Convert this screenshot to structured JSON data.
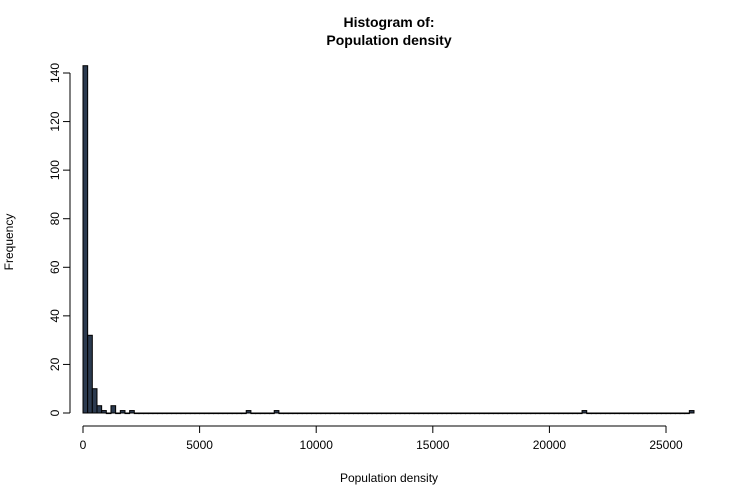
{
  "chart_data": {
    "type": "bar",
    "title": "Histogram of:\nPopulation density",
    "title_lines": [
      "Histogram of:",
      "Population density"
    ],
    "xlabel": "Population density",
    "ylabel": "Frequency",
    "xlim": [
      0,
      26200
    ],
    "ylim": [
      0,
      140
    ],
    "bin_width": 200,
    "x_ticks": [
      0,
      5000,
      10000,
      15000,
      20000,
      25000
    ],
    "y_ticks": [
      0,
      20,
      40,
      60,
      80,
      100,
      120,
      140
    ],
    "bar_color": "#2b3a4f",
    "grid": false,
    "bins": [
      {
        "x0": 0,
        "x1": 200,
        "count": 143
      },
      {
        "x0": 200,
        "x1": 400,
        "count": 32
      },
      {
        "x0": 400,
        "x1": 600,
        "count": 10
      },
      {
        "x0": 600,
        "x1": 800,
        "count": 3
      },
      {
        "x0": 800,
        "x1": 1000,
        "count": 1
      },
      {
        "x0": 1200,
        "x1": 1400,
        "count": 3
      },
      {
        "x0": 1600,
        "x1": 1800,
        "count": 1
      },
      {
        "x0": 2000,
        "x1": 2200,
        "count": 1
      },
      {
        "x0": 7000,
        "x1": 7200,
        "count": 1
      },
      {
        "x0": 8200,
        "x1": 8400,
        "count": 1
      },
      {
        "x0": 21400,
        "x1": 21600,
        "count": 1
      },
      {
        "x0": 26000,
        "x1": 26200,
        "count": 1
      }
    ]
  }
}
